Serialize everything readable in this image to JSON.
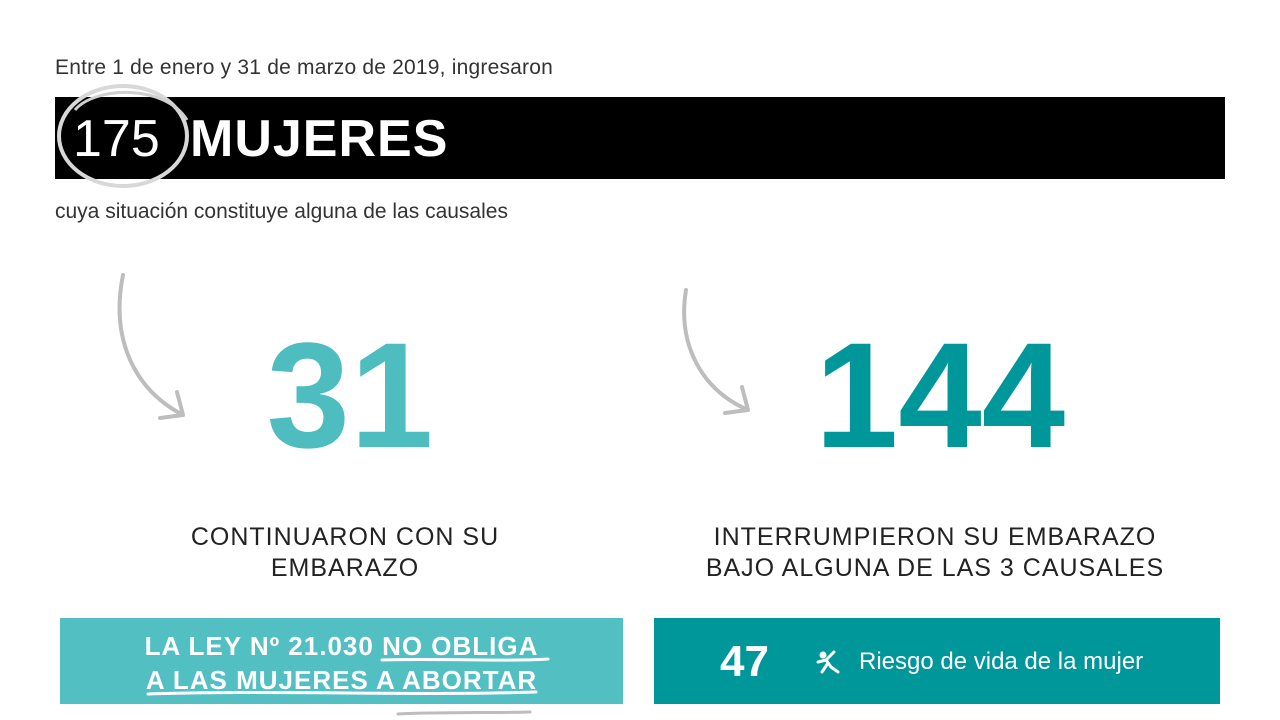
{
  "intro": "Entre 1 de enero y 31 de marzo de 2019, ingresaron",
  "banner": {
    "count": "175",
    "label": "MUJERES"
  },
  "subtitle": "cuya situación constituye alguna de las causales",
  "left": {
    "number": "31",
    "caption_line1": "CONTINUARON CON SU",
    "caption_line2": "EMBARAZO",
    "box_line1_a": "LA LEY Nº 21.030 ",
    "box_line1_b": "NO OBLIGA",
    "box_line2": "A LAS MUJERES A ABORTAR"
  },
  "right": {
    "number": "144",
    "caption_line1": "INTERRUMPIERON SU EMBARAZO",
    "caption_line2": "BAJO ALGUNA DE LAS 3 CAUSALES",
    "box_count": "47",
    "box_icon": "fallen-person-icon",
    "box_label": "Riesgo de vida de la mujer"
  },
  "colors": {
    "light_teal": "#52bfc2",
    "dark_teal": "#00979a",
    "banner": "#000000"
  }
}
